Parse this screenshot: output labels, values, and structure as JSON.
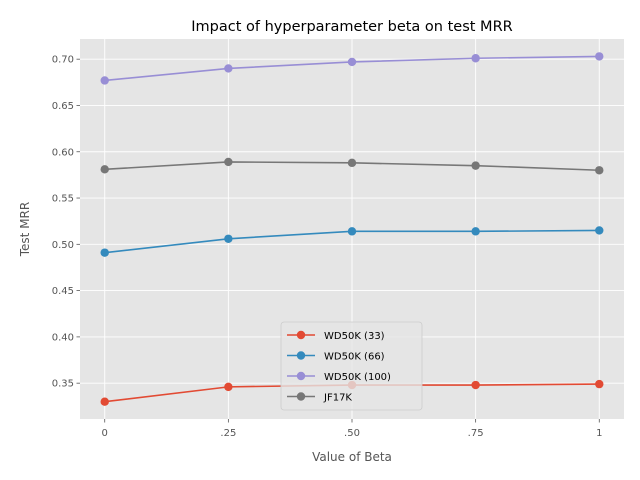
{
  "chart_data": {
    "type": "line",
    "title": "Impact of hyperparameter beta on test MRR",
    "xlabel": "Value of Beta",
    "ylabel": "Test MRR",
    "x": [
      0,
      0.25,
      0.5,
      0.75,
      1
    ],
    "x_tick_labels": [
      "0",
      ".25",
      ".50",
      ".75",
      "1"
    ],
    "xlim": [
      -0.05,
      1.05
    ],
    "ylim": [
      0.3113,
      0.7218
    ],
    "y_ticks": [
      0.35,
      0.4,
      0.45,
      0.5,
      0.55,
      0.6,
      0.65,
      0.7
    ],
    "y_tick_labels": [
      "0.35",
      "0.40",
      "0.45",
      "0.50",
      "0.55",
      "0.60",
      "0.65",
      "0.70"
    ],
    "grid": true,
    "legend_position": "lower-center",
    "series": [
      {
        "name": "WD50K (33)",
        "color": "#E24A33",
        "values": [
          0.33,
          0.346,
          0.348,
          0.348,
          0.349
        ]
      },
      {
        "name": "WD50K (66)",
        "color": "#348ABD",
        "values": [
          0.491,
          0.506,
          0.514,
          0.514,
          0.515
        ]
      },
      {
        "name": "WD50K (100)",
        "color": "#988ED5",
        "values": [
          0.677,
          0.69,
          0.697,
          0.701,
          0.703
        ]
      },
      {
        "name": "JF17K",
        "color": "#777777",
        "values": [
          0.581,
          0.589,
          0.588,
          0.585,
          0.58
        ]
      }
    ]
  }
}
